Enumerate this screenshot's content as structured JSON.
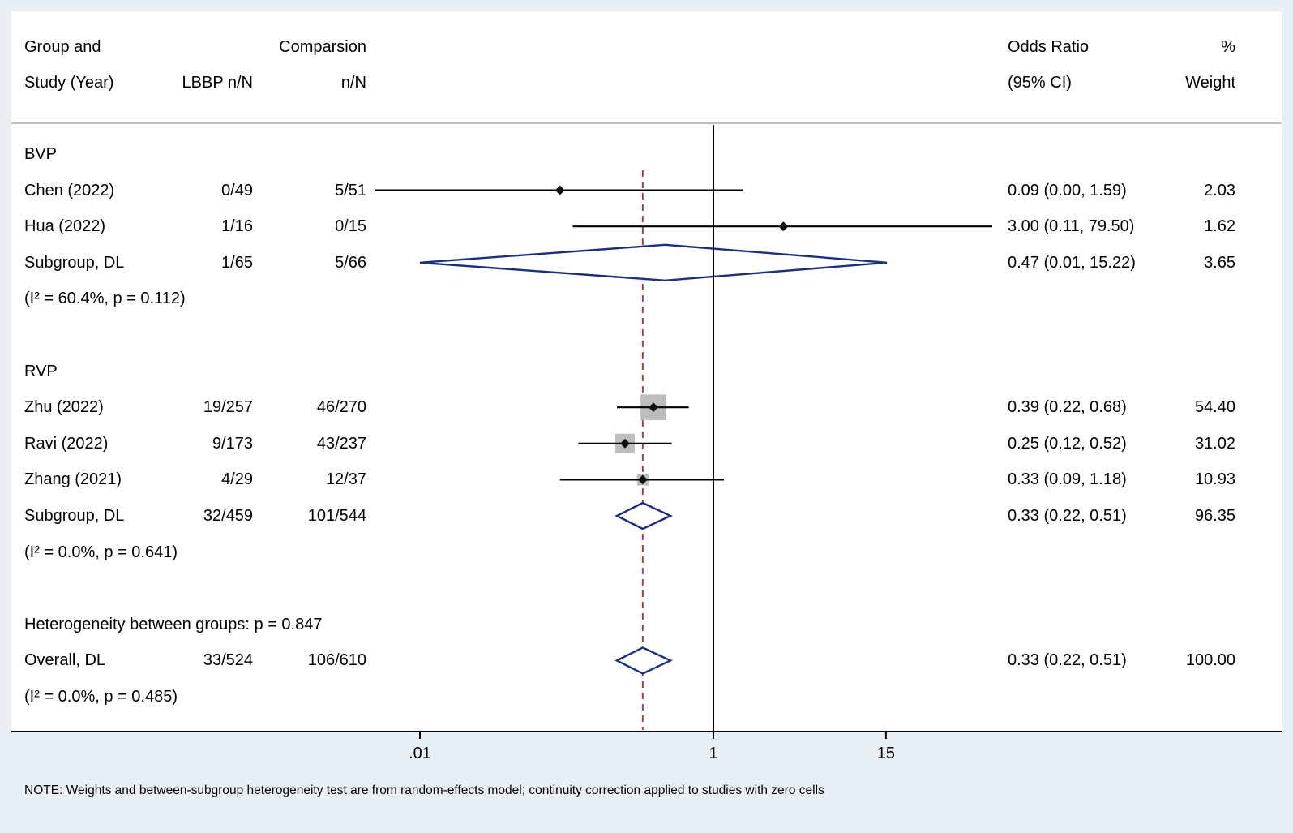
{
  "colors": {
    "background": "#e9f0f5",
    "panel": "#ffffff",
    "diamond": "#1b2f7e",
    "marker_square": "#bdbdbd",
    "marker_point": "#111111",
    "ci_line": "#000000",
    "null_line": "#000000",
    "dashed_line": "#9a4540",
    "header_rule": "#b9c1c7",
    "text": "#000000"
  },
  "header": {
    "col_study_line1": "Group and",
    "col_study_line2": "Study (Year)",
    "col_lbbp": "LBBP n/N",
    "col_comp_line1": "Comparsion",
    "col_comp_line2": "n/N",
    "col_or_line1": "Odds Ratio",
    "col_or_line2": "(95% CI)",
    "col_weight_line1": "%",
    "col_weight_line2": "Weight"
  },
  "note": "NOTE: Weights and between-subgroup heterogeneity test are from random-effects model; continuity correction applied to studies with zero cells",
  "chart_data": {
    "type": "forest",
    "effect_measure": "Odds Ratio",
    "x_axis": {
      "scale": "log10",
      "ticks": [
        {
          "label": ".01",
          "value": 0.01
        },
        {
          "label": "1",
          "value": 1
        },
        {
          "label": "15",
          "value": 15
        }
      ]
    },
    "null_value": 1,
    "overall_line_value": 0.33,
    "rows": [
      {
        "type": "group",
        "label": "BVP"
      },
      {
        "type": "study",
        "label": "Chen (2022)",
        "lbbp": "0/49",
        "comp": "5/51",
        "est": 0.09,
        "lo": null,
        "hi": 1.59,
        "or_text": "0.09 (0.00, 1.59)",
        "weight": 2.03,
        "weight_text": "2.03"
      },
      {
        "type": "study",
        "label": "Hua (2022)",
        "lbbp": "1/16",
        "comp": "0/15",
        "est": 3.0,
        "lo": 0.11,
        "hi": 79.5,
        "or_text": "3.00 (0.11, 79.50)",
        "weight": 1.62,
        "weight_text": "1.62"
      },
      {
        "type": "subgroup",
        "label": "Subgroup, DL",
        "lbbp": "1/65",
        "comp": "5/66",
        "est": 0.47,
        "lo": 0.01,
        "hi": 15.22,
        "or_text": "0.47 (0.01, 15.22)",
        "weight": 3.65,
        "weight_text": "3.65"
      },
      {
        "type": "text",
        "label": "(I² = 60.4%, p = 0.112)"
      },
      {
        "type": "spacer"
      },
      {
        "type": "group",
        "label": "RVP"
      },
      {
        "type": "study",
        "label": "Zhu (2022)",
        "lbbp": "19/257",
        "comp": "46/270",
        "est": 0.39,
        "lo": 0.22,
        "hi": 0.68,
        "or_text": "0.39 (0.22, 0.68)",
        "weight": 54.4,
        "weight_text": "54.40"
      },
      {
        "type": "study",
        "label": "Ravi (2022)",
        "lbbp": "9/173",
        "comp": "43/237",
        "est": 0.25,
        "lo": 0.12,
        "hi": 0.52,
        "or_text": "0.25 (0.12, 0.52)",
        "weight": 31.02,
        "weight_text": "31.02"
      },
      {
        "type": "study",
        "label": "Zhang (2021)",
        "lbbp": "4/29",
        "comp": "12/37",
        "est": 0.33,
        "lo": 0.09,
        "hi": 1.18,
        "or_text": "0.33 (0.09, 1.18)",
        "weight": 10.93,
        "weight_text": "10.93"
      },
      {
        "type": "subgroup",
        "label": "Subgroup, DL",
        "lbbp": "32/459",
        "comp": "101/544",
        "est": 0.33,
        "lo": 0.22,
        "hi": 0.51,
        "or_text": "0.33 (0.22, 0.51)",
        "weight": 96.35,
        "weight_text": "96.35"
      },
      {
        "type": "text",
        "label": "(I² = 0.0%, p = 0.641)"
      },
      {
        "type": "spacer"
      },
      {
        "type": "text",
        "label": "Heterogeneity between groups: p = 0.847"
      },
      {
        "type": "overall",
        "label": "Overall, DL",
        "lbbp": "33/524",
        "comp": "106/610",
        "est": 0.33,
        "lo": 0.22,
        "hi": 0.51,
        "or_text": "0.33 (0.22, 0.51)",
        "weight": 100.0,
        "weight_text": "100.00"
      },
      {
        "type": "text",
        "label": "(I² = 0.0%, p = 0.485)"
      }
    ]
  }
}
